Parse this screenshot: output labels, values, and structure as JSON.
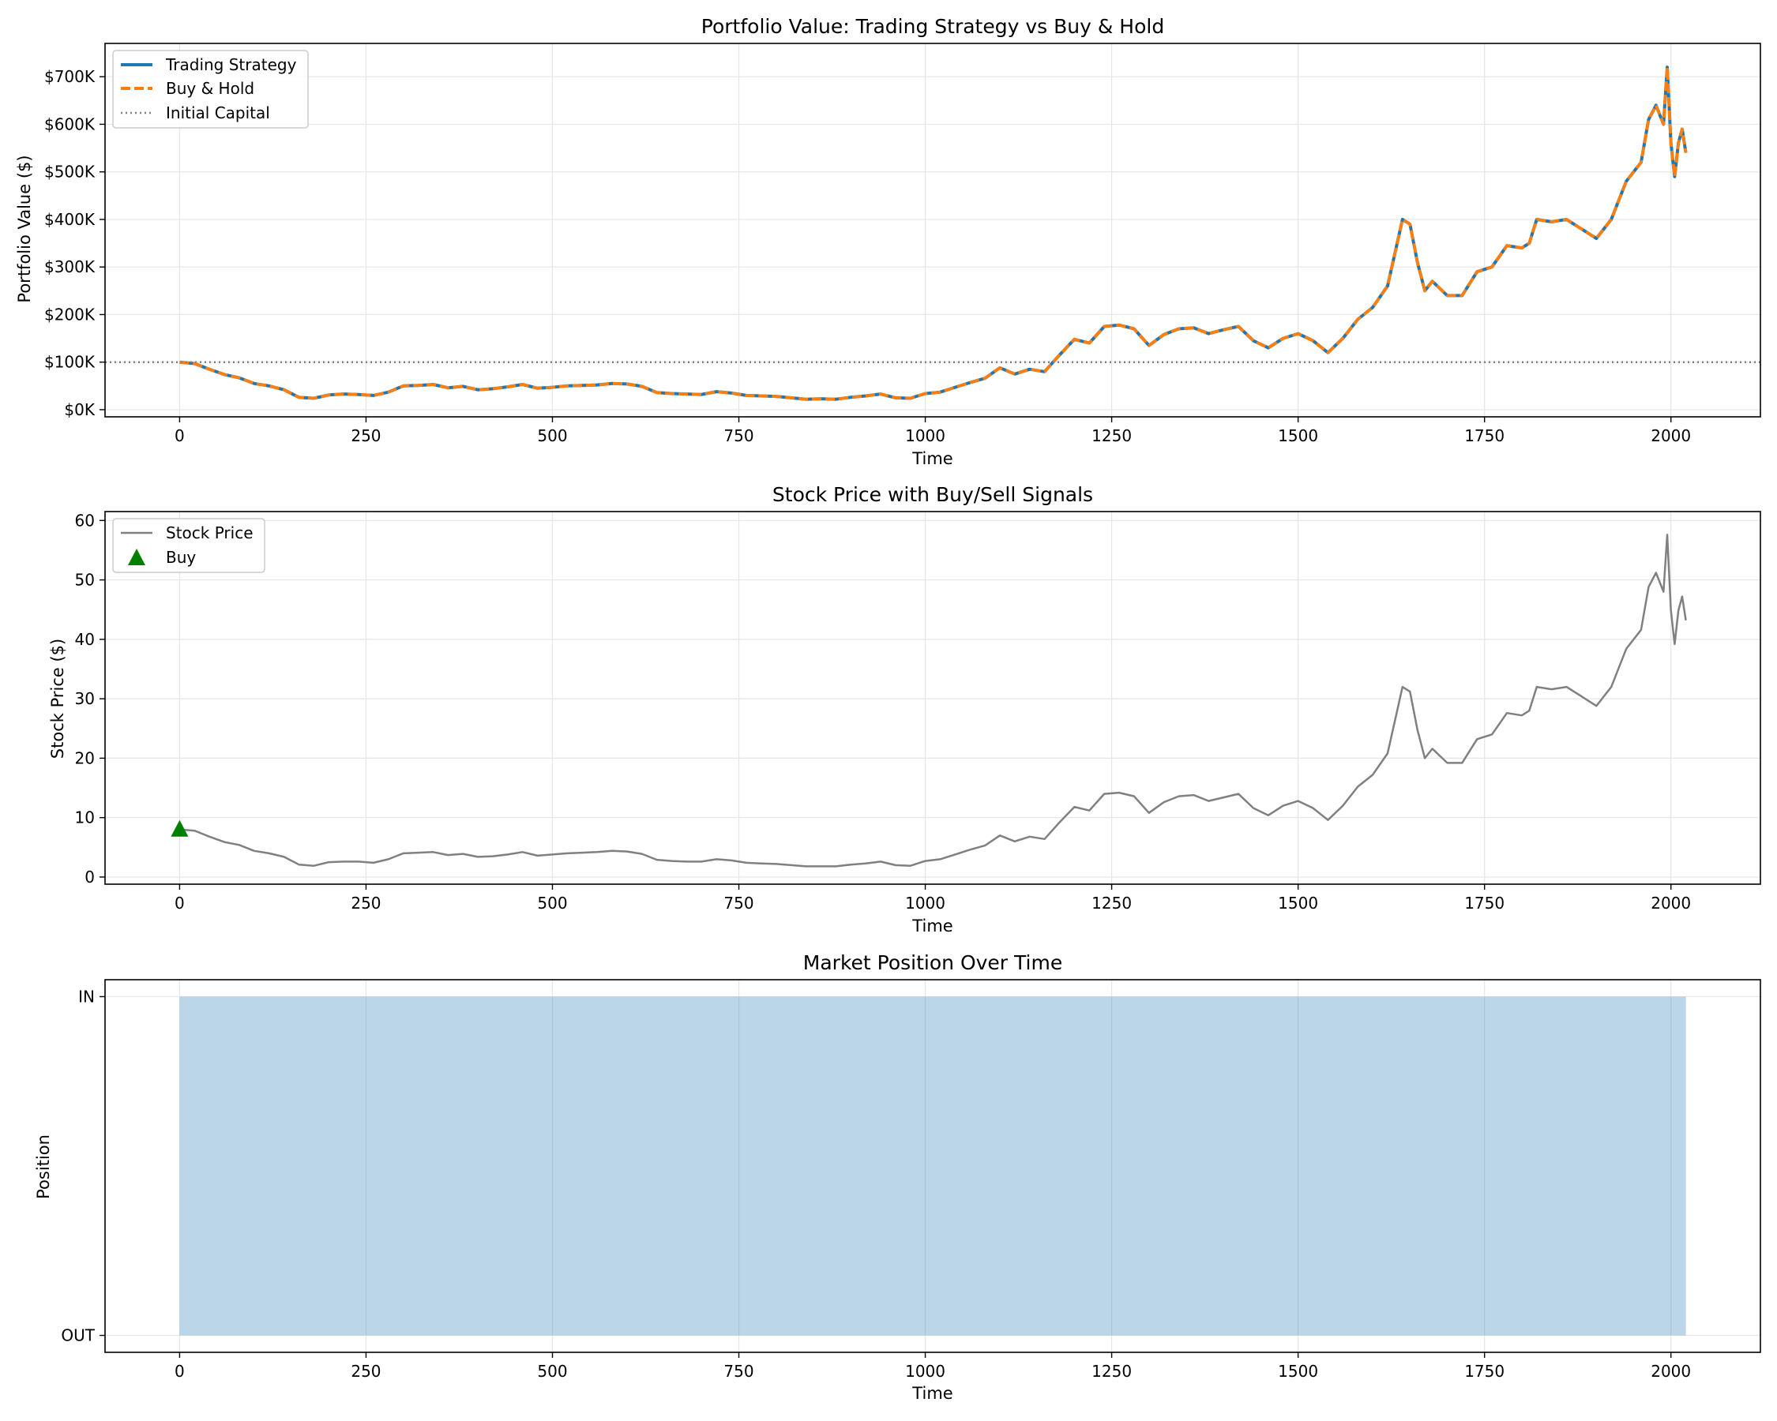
{
  "chart_data": [
    {
      "type": "line",
      "title": "Portfolio Value: Trading Strategy vs Buy & Hold",
      "xlabel": "Time",
      "ylabel": "Portfolio Value ($)",
      "xlim": [
        -100,
        2120
      ],
      "ylim": [
        -15000,
        770000
      ],
      "xticks": [
        0,
        250,
        500,
        750,
        1000,
        1250,
        1500,
        1750,
        2000
      ],
      "yticks": [
        0,
        100000,
        200000,
        300000,
        400000,
        500000,
        600000,
        700000
      ],
      "ytick_labels": [
        "$0K",
        "$100K",
        "$200K",
        "$300K",
        "$400K",
        "$500K",
        "$600K",
        "$700K"
      ],
      "grid": true,
      "legend": "top-left",
      "series": [
        {
          "name": "Trading Strategy",
          "color": "#1f77b4",
          "style": "solid",
          "x": [
            0,
            20,
            40,
            60,
            80,
            100,
            120,
            140,
            160,
            180,
            200,
            220,
            240,
            260,
            280,
            300,
            320,
            340,
            360,
            380,
            400,
            420,
            440,
            460,
            480,
            500,
            520,
            540,
            560,
            580,
            600,
            620,
            640,
            660,
            680,
            700,
            720,
            740,
            760,
            780,
            800,
            820,
            840,
            860,
            880,
            900,
            920,
            940,
            960,
            980,
            1000,
            1020,
            1040,
            1060,
            1080,
            1100,
            1120,
            1140,
            1160,
            1180,
            1200,
            1220,
            1240,
            1260,
            1280,
            1300,
            1320,
            1340,
            1360,
            1380,
            1400,
            1420,
            1440,
            1460,
            1480,
            1500,
            1520,
            1540,
            1560,
            1580,
            1600,
            1620,
            1630,
            1640,
            1650,
            1660,
            1670,
            1680,
            1700,
            1720,
            1740,
            1760,
            1780,
            1800,
            1810,
            1820,
            1840,
            1860,
            1880,
            1900,
            1920,
            1940,
            1960,
            1970,
            1980,
            1990,
            1995,
            2000,
            2005,
            2010,
            2015,
            2020
          ],
          "values": [
            100000,
            97000,
            85000,
            74000,
            67000,
            55000,
            50000,
            42000,
            26000,
            24000,
            31000,
            33000,
            32000,
            30000,
            37000,
            50000,
            51000,
            53000,
            46000,
            49000,
            42000,
            44000,
            48000,
            53000,
            45000,
            47000,
            50000,
            51000,
            52000,
            55000,
            54000,
            49000,
            36000,
            34000,
            33000,
            32000,
            38000,
            35000,
            30000,
            29000,
            28000,
            25000,
            22000,
            23000,
            22000,
            26000,
            29000,
            33000,
            25000,
            24000,
            34000,
            37000,
            47000,
            57000,
            66000,
            88000,
            75000,
            85000,
            80000,
            115000,
            148000,
            140000,
            175000,
            178000,
            170000,
            135000,
            158000,
            170000,
            172000,
            160000,
            168000,
            175000,
            145000,
            130000,
            150000,
            160000,
            145000,
            120000,
            150000,
            190000,
            215000,
            260000,
            330000,
            400000,
            390000,
            310000,
            250000,
            270000,
            240000,
            240000,
            290000,
            300000,
            345000,
            340000,
            350000,
            400000,
            395000,
            400000,
            380000,
            360000,
            400000,
            480000,
            520000,
            610000,
            640000,
            600000,
            720000,
            560000,
            490000,
            560000,
            590000,
            540000
          ]
        },
        {
          "name": "Buy & Hold",
          "color": "#ff7f0e",
          "style": "dashed",
          "x": [
            0,
            20,
            40,
            60,
            80,
            100,
            120,
            140,
            160,
            180,
            200,
            220,
            240,
            260,
            280,
            300,
            320,
            340,
            360,
            380,
            400,
            420,
            440,
            460,
            480,
            500,
            520,
            540,
            560,
            580,
            600,
            620,
            640,
            660,
            680,
            700,
            720,
            740,
            760,
            780,
            800,
            820,
            840,
            860,
            880,
            900,
            920,
            940,
            960,
            980,
            1000,
            1020,
            1040,
            1060,
            1080,
            1100,
            1120,
            1140,
            1160,
            1180,
            1200,
            1220,
            1240,
            1260,
            1280,
            1300,
            1320,
            1340,
            1360,
            1380,
            1400,
            1420,
            1440,
            1460,
            1480,
            1500,
            1520,
            1540,
            1560,
            1580,
            1600,
            1620,
            1630,
            1640,
            1650,
            1660,
            1670,
            1680,
            1700,
            1720,
            1740,
            1760,
            1780,
            1800,
            1810,
            1820,
            1840,
            1860,
            1880,
            1900,
            1920,
            1940,
            1960,
            1970,
            1980,
            1990,
            1995,
            2000,
            2005,
            2010,
            2015,
            2020
          ],
          "values": [
            100000,
            97000,
            85000,
            74000,
            67000,
            55000,
            50000,
            42000,
            26000,
            24000,
            31000,
            33000,
            32000,
            30000,
            37000,
            50000,
            51000,
            53000,
            46000,
            49000,
            42000,
            44000,
            48000,
            53000,
            45000,
            47000,
            50000,
            51000,
            52000,
            55000,
            54000,
            49000,
            36000,
            34000,
            33000,
            32000,
            38000,
            35000,
            30000,
            29000,
            28000,
            25000,
            22000,
            23000,
            22000,
            26000,
            29000,
            33000,
            25000,
            24000,
            34000,
            37000,
            47000,
            57000,
            66000,
            88000,
            75000,
            85000,
            80000,
            115000,
            148000,
            140000,
            175000,
            178000,
            170000,
            135000,
            158000,
            170000,
            172000,
            160000,
            168000,
            175000,
            145000,
            130000,
            150000,
            160000,
            145000,
            120000,
            150000,
            190000,
            215000,
            260000,
            330000,
            400000,
            390000,
            310000,
            250000,
            270000,
            240000,
            240000,
            290000,
            300000,
            345000,
            340000,
            350000,
            400000,
            395000,
            400000,
            380000,
            360000,
            400000,
            480000,
            520000,
            610000,
            640000,
            600000,
            720000,
            560000,
            490000,
            560000,
            590000,
            540000
          ]
        },
        {
          "name": "Initial Capital",
          "color": "#808080",
          "style": "dotted",
          "hline": 100000
        }
      ]
    },
    {
      "type": "line",
      "title": "Stock Price with Buy/Sell Signals",
      "xlabel": "Time",
      "ylabel": "Stock Price ($)",
      "xlim": [
        -100,
        2120
      ],
      "ylim": [
        -1.2,
        61.5
      ],
      "xticks": [
        0,
        250,
        500,
        750,
        1000,
        1250,
        1500,
        1750,
        2000
      ],
      "yticks": [
        0,
        10,
        20,
        30,
        40,
        50,
        60
      ],
      "grid": true,
      "legend": "top-left",
      "series": [
        {
          "name": "Stock Price",
          "color": "#808080",
          "style": "solid",
          "x": [
            0,
            20,
            40,
            60,
            80,
            100,
            120,
            140,
            160,
            180,
            200,
            220,
            240,
            260,
            280,
            300,
            320,
            340,
            360,
            380,
            400,
            420,
            440,
            460,
            480,
            500,
            520,
            540,
            560,
            580,
            600,
            620,
            640,
            660,
            680,
            700,
            720,
            740,
            760,
            780,
            800,
            820,
            840,
            860,
            880,
            900,
            920,
            940,
            960,
            980,
            1000,
            1020,
            1040,
            1060,
            1080,
            1100,
            1120,
            1140,
            1160,
            1180,
            1200,
            1220,
            1240,
            1260,
            1280,
            1300,
            1320,
            1340,
            1360,
            1380,
            1400,
            1420,
            1440,
            1460,
            1480,
            1500,
            1520,
            1540,
            1560,
            1580,
            1600,
            1620,
            1630,
            1640,
            1650,
            1660,
            1670,
            1680,
            1700,
            1720,
            1740,
            1760,
            1780,
            1800,
            1810,
            1820,
            1840,
            1860,
            1880,
            1900,
            1920,
            1940,
            1960,
            1970,
            1980,
            1990,
            1995,
            2000,
            2005,
            2010,
            2015,
            2020
          ],
          "values": [
            8.0,
            7.8,
            6.8,
            5.9,
            5.4,
            4.4,
            4.0,
            3.4,
            2.1,
            1.9,
            2.5,
            2.6,
            2.6,
            2.4,
            3.0,
            4.0,
            4.1,
            4.2,
            3.7,
            3.9,
            3.4,
            3.5,
            3.8,
            4.2,
            3.6,
            3.8,
            4.0,
            4.1,
            4.2,
            4.4,
            4.3,
            3.9,
            2.9,
            2.7,
            2.6,
            2.6,
            3.0,
            2.8,
            2.4,
            2.3,
            2.2,
            2.0,
            1.8,
            1.8,
            1.8,
            2.1,
            2.3,
            2.6,
            2.0,
            1.9,
            2.7,
            3.0,
            3.8,
            4.6,
            5.3,
            7.0,
            6.0,
            6.8,
            6.4,
            9.2,
            11.8,
            11.2,
            14.0,
            14.2,
            13.6,
            10.8,
            12.6,
            13.6,
            13.8,
            12.8,
            13.4,
            14.0,
            11.6,
            10.4,
            12.0,
            12.8,
            11.6,
            9.6,
            12.0,
            15.2,
            17.2,
            20.8,
            26.4,
            32.0,
            31.2,
            24.8,
            20.0,
            21.6,
            19.2,
            19.2,
            23.2,
            24.0,
            27.6,
            27.2,
            28.0,
            32.0,
            31.6,
            32.0,
            30.4,
            28.8,
            32.0,
            38.4,
            41.6,
            48.8,
            51.2,
            48.0,
            57.6,
            44.8,
            39.2,
            44.8,
            47.2,
            43.2
          ]
        },
        {
          "name": "Buy",
          "color": "#008000",
          "marker": "triangle",
          "points": [
            {
              "x": 0,
              "y": 8.0
            }
          ]
        }
      ]
    },
    {
      "type": "area",
      "title": "Market Position Over Time",
      "xlabel": "Time",
      "ylabel": "Position",
      "xlim": [
        -100,
        2120
      ],
      "ylim": [
        -0.05,
        1.05
      ],
      "xticks": [
        0,
        250,
        500,
        750,
        1000,
        1250,
        1500,
        1750,
        2000
      ],
      "yticks": [
        0,
        1
      ],
      "ytick_labels": [
        "OUT",
        "IN"
      ],
      "grid": true,
      "series": [
        {
          "color": "#1f77b4",
          "opacity": 0.3,
          "x": [
            0,
            2020
          ],
          "values": [
            1,
            1
          ]
        }
      ]
    }
  ]
}
